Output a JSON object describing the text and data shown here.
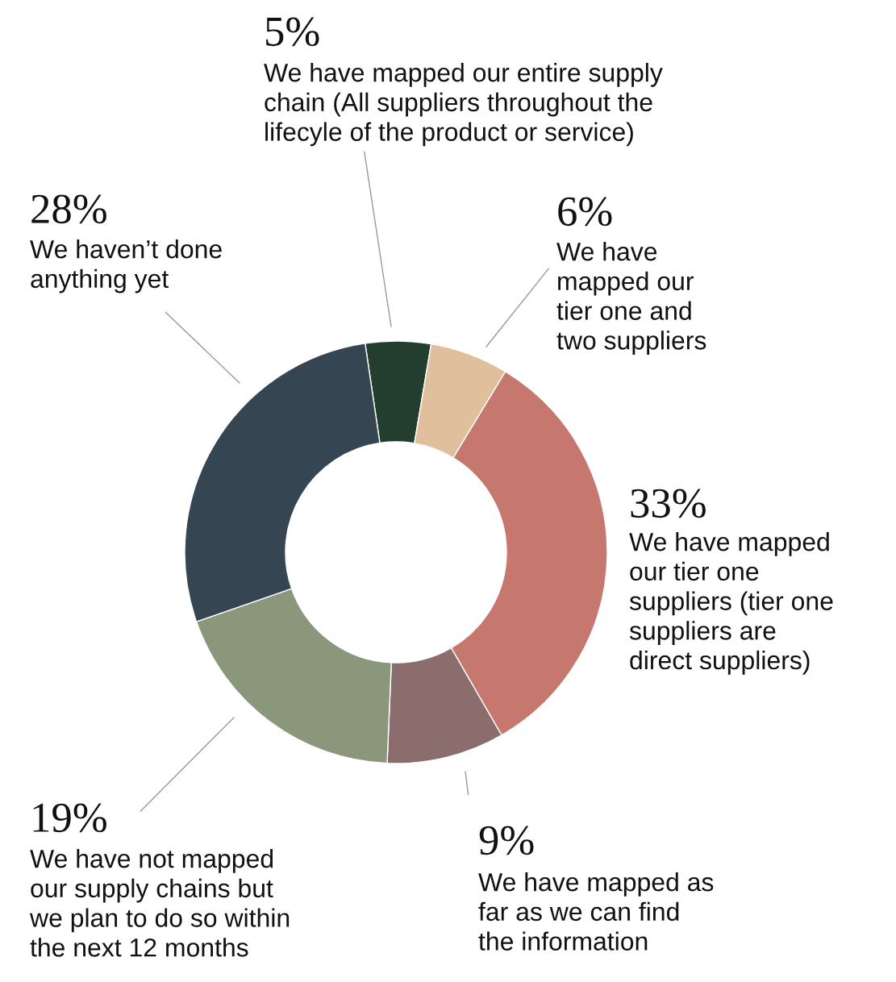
{
  "chart_data": {
    "type": "donut",
    "categories": [
      "We have mapped our entire supply\nchain (All suppliers throughout the\nlifecyle of the product or service)",
      "We have\nmapped our\ntier one and\ntwo suppliers",
      "We have mapped\nour tier one\nsuppliers (tier one\nsuppliers are\ndirect suppliers)",
      "We have mapped as\nfar as we can find\nthe information",
      "We have not mapped\nour supply chains but\nwe plan to do so within\nthe next 12 months",
      "We haven’t done\nanything yet"
    ],
    "values": [
      5,
      6,
      33,
      9,
      19,
      28
    ],
    "value_labels": [
      "5%",
      "6%",
      "33%",
      "9%",
      "19%",
      "28%"
    ],
    "colors": [
      "#233d2e",
      "#e0bf9c",
      "#c6776e",
      "#8b6d6e",
      "#8a977a",
      "#354552"
    ]
  }
}
